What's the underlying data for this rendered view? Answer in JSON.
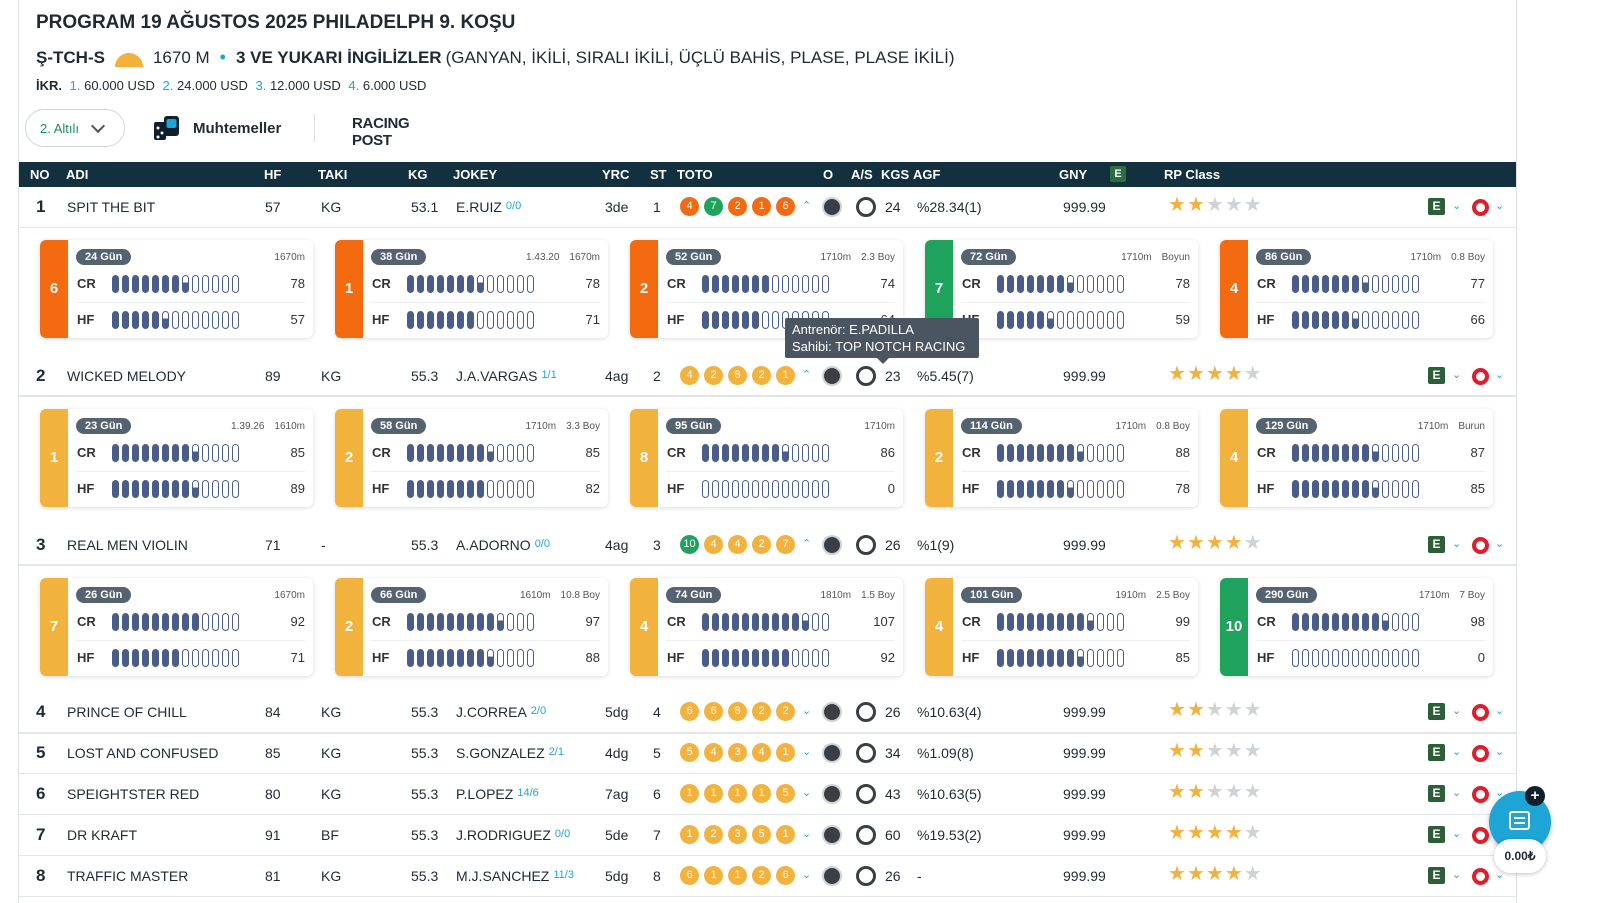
{
  "header": {
    "title": "PROGRAM 19 AĞUSTOS 2025 PHILADELPH 9. KOŞU",
    "race_code": "Ş-TCH-S",
    "distance": "1670 M",
    "bullet": "•",
    "condition": "3 VE YUKARI İNGİLİZLER",
    "bets": "(GANYAN, İKİLİ, SIRALI İKİLİ, ÜÇLÜ BAHİS, PLASE, PLASE İKİLİ)",
    "prize_label": "İKR.",
    "prizes": [
      {
        "idx": "1.",
        "amount": "60.000 USD"
      },
      {
        "idx": "2.",
        "amount": "24.000 USD"
      },
      {
        "idx": "3.",
        "amount": "12.000 USD"
      },
      {
        "idx": "4.",
        "amount": "6.000 USD"
      }
    ],
    "surface_color": "#f3b13c"
  },
  "toolbar": {
    "altili": "2. Altılı",
    "muhtemeller": "Muhtemeller",
    "racing_post": "RACING POST"
  },
  "columns": {
    "no": "NO",
    "adi": "ADI",
    "hf": "HF",
    "taki": "TAKI",
    "kg": "KG",
    "jokey": "JOKEY",
    "yrc": "YRC",
    "st": "ST",
    "toto": "TOTO",
    "o": "O",
    "as": "A/S",
    "kgs": "KGS",
    "agf": "AGF",
    "gny": "GNY",
    "e": "E",
    "rp": "RP Class"
  },
  "colors": {
    "orange": "#f2b23e",
    "deep_orange": "#f36a10",
    "green": "#1fa35c"
  },
  "rows": [
    {
      "no": "1",
      "name": "SPIT THE BIT",
      "hf": "57",
      "taki": "KG",
      "kg": "53.1",
      "jockey": "E.RUIZ",
      "jr": "0/0",
      "yrc": "3de",
      "st": "1",
      "toto": [
        {
          "v": "4",
          "c": "#f36a10"
        },
        {
          "v": "7",
          "c": "#1fa35c"
        },
        {
          "v": "2",
          "c": "#f36a10"
        },
        {
          "v": "1",
          "c": "#f36a10"
        },
        {
          "v": "6",
          "c": "#f36a10"
        }
      ],
      "arrow": "⌃",
      "kgs": "24",
      "agf": "%28.34(1)",
      "gny": "999.99",
      "stars": 2,
      "e": "E"
    },
    {
      "no": "2",
      "name": "WICKED MELODY",
      "hf": "89",
      "taki": "KG",
      "kg": "55.3",
      "jockey": "J.A.VARGAS",
      "jr": "1/1",
      "yrc": "4ag",
      "st": "2",
      "toto": [
        {
          "v": "4",
          "c": "#f2b23e"
        },
        {
          "v": "2",
          "c": "#f2b23e"
        },
        {
          "v": "8",
          "c": "#f2b23e"
        },
        {
          "v": "2",
          "c": "#f2b23e"
        },
        {
          "v": "1",
          "c": "#f2b23e"
        }
      ],
      "arrow": "⌃",
      "kgs": "23",
      "agf": "%5.45(7)",
      "gny": "999.99",
      "stars": 4,
      "e": "E"
    },
    {
      "no": "3",
      "name": "REAL MEN VIOLIN",
      "hf": "71",
      "taki": "-",
      "kg": "55.3",
      "jockey": "A.ADORNO",
      "jr": "0/0",
      "yrc": "4ag",
      "st": "3",
      "toto": [
        {
          "v": "10",
          "c": "#1fa35c"
        },
        {
          "v": "4",
          "c": "#f2b23e"
        },
        {
          "v": "4",
          "c": "#f2b23e"
        },
        {
          "v": "2",
          "c": "#f2b23e"
        },
        {
          "v": "7",
          "c": "#f2b23e"
        }
      ],
      "arrow": "⌃",
      "kgs": "26",
      "agf": "%1(9)",
      "gny": "999.99",
      "stars": 4,
      "e": "E"
    },
    {
      "no": "4",
      "name": "PRINCE OF CHILL",
      "hf": "84",
      "taki": "KG",
      "kg": "55.3",
      "jockey": "J.CORREA",
      "jr": "2/0",
      "yrc": "5dg",
      "st": "4",
      "toto": [
        {
          "v": "6",
          "c": "#f2b23e"
        },
        {
          "v": "6",
          "c": "#f2b23e"
        },
        {
          "v": "8",
          "c": "#f2b23e"
        },
        {
          "v": "2",
          "c": "#f2b23e"
        },
        {
          "v": "2",
          "c": "#f2b23e"
        }
      ],
      "arrow": "⌄",
      "kgs": "26",
      "agf": "%10.63(4)",
      "gny": "999.99",
      "stars": 2,
      "e": "E"
    },
    {
      "no": "5",
      "name": "LOST AND CONFUSED",
      "hf": "85",
      "taki": "KG",
      "kg": "55.3",
      "jockey": "S.GONZALEZ",
      "jr": "2/1",
      "yrc": "4dg",
      "st": "5",
      "toto": [
        {
          "v": "5",
          "c": "#f2b23e"
        },
        {
          "v": "4",
          "c": "#f2b23e"
        },
        {
          "v": "3",
          "c": "#f2b23e"
        },
        {
          "v": "4",
          "c": "#f2b23e"
        },
        {
          "v": "1",
          "c": "#f2b23e"
        }
      ],
      "arrow": "⌄",
      "kgs": "34",
      "agf": "%1.09(8)",
      "gny": "999.99",
      "stars": 2,
      "e": "E"
    },
    {
      "no": "6",
      "name": "SPEIGHTSTER RED",
      "hf": "80",
      "taki": "KG",
      "kg": "55.3",
      "jockey": "P.LOPEZ",
      "jr": "14/6",
      "yrc": "7ag",
      "st": "6",
      "toto": [
        {
          "v": "1",
          "c": "#f2b23e"
        },
        {
          "v": "1",
          "c": "#f2b23e"
        },
        {
          "v": "1",
          "c": "#f2b23e"
        },
        {
          "v": "1",
          "c": "#f2b23e"
        },
        {
          "v": "5",
          "c": "#f2b23e"
        }
      ],
      "arrow": "⌄",
      "kgs": "43",
      "agf": "%10.63(5)",
      "gny": "999.99",
      "stars": 2,
      "e": "E"
    },
    {
      "no": "7",
      "name": "DR KRAFT",
      "hf": "91",
      "taki": "BF",
      "kg": "55.3",
      "jockey": "J.RODRIGUEZ",
      "jr": "0/0",
      "yrc": "5de",
      "st": "7",
      "toto": [
        {
          "v": "1",
          "c": "#f2b23e"
        },
        {
          "v": "2",
          "c": "#f2b23e"
        },
        {
          "v": "3",
          "c": "#f2b23e"
        },
        {
          "v": "5",
          "c": "#f2b23e"
        },
        {
          "v": "1",
          "c": "#f2b23e"
        }
      ],
      "arrow": "⌄",
      "kgs": "60",
      "agf": "%19.53(2)",
      "gny": "999.99",
      "stars": 4,
      "e": "E"
    },
    {
      "no": "8",
      "name": "TRAFFIC MASTER",
      "hf": "81",
      "taki": "KG",
      "kg": "55.3",
      "jockey": "M.J.SANCHEZ",
      "jr": "11/3",
      "yrc": "5dg",
      "st": "8",
      "toto": [
        {
          "v": "6",
          "c": "#f2b23e"
        },
        {
          "v": "1",
          "c": "#f2b23e"
        },
        {
          "v": "1",
          "c": "#f2b23e"
        },
        {
          "v": "2",
          "c": "#f2b23e"
        },
        {
          "v": "6",
          "c": "#f2b23e"
        }
      ],
      "arrow": "⌄",
      "kgs": "26",
      "agf": "-",
      "gny": "999.99",
      "stars": 4,
      "e": "E"
    }
  ],
  "panels": [
    [
      {
        "pos": "6",
        "color": "#f36a10",
        "gun": "24 Gün",
        "meta": [
          "1670m"
        ],
        "cr": "78",
        "crf": 7.5,
        "hf": "57",
        "hff": 5.5
      },
      {
        "pos": "1",
        "color": "#f36a10",
        "gun": "38 Gün",
        "meta": [
          "1.43.20",
          "1670m"
        ],
        "cr": "78",
        "crf": 7.5,
        "hf": "71",
        "hff": 7
      },
      {
        "pos": "2",
        "color": "#f36a10",
        "gun": "52 Gün",
        "meta": [
          "1710m",
          "2.3 Boy"
        ],
        "cr": "74",
        "crf": 7,
        "hf": "64",
        "hff": 6
      },
      {
        "pos": "7",
        "color": "#1fa35c",
        "gun": "72 Gün",
        "meta": [
          "1710m",
          "Boyun"
        ],
        "cr": "78",
        "crf": 7.5,
        "hf": "59",
        "hff": 5.5
      },
      {
        "pos": "4",
        "color": "#f36a10",
        "gun": "86 Gün",
        "meta": [
          "1710m",
          "0.8 Boy"
        ],
        "cr": "77",
        "crf": 7.5,
        "hf": "66",
        "hff": 6.5
      }
    ],
    [
      {
        "pos": "1",
        "color": "#f2b23e",
        "gun": "23 Gün",
        "meta": [
          "1.39.26",
          "1610m"
        ],
        "cr": "85",
        "crf": 8.5,
        "hf": "89",
        "hff": 8.5
      },
      {
        "pos": "2",
        "color": "#f2b23e",
        "gun": "58 Gün",
        "meta": [
          "1710m",
          "3.3 Boy"
        ],
        "cr": "85",
        "crf": 8.5,
        "hf": "82",
        "hff": 8
      },
      {
        "pos": "8",
        "color": "#f2b23e",
        "gun": "95 Gün",
        "meta": [
          "1710m"
        ],
        "cr": "86",
        "crf": 8.5,
        "hf": "0",
        "hff": 0
      },
      {
        "pos": "2",
        "color": "#f2b23e",
        "gun": "114 Gün",
        "meta": [
          "1710m",
          "0.8 Boy"
        ],
        "cr": "88",
        "crf": 8.5,
        "hf": "78",
        "hff": 7.5
      },
      {
        "pos": "4",
        "color": "#f2b23e",
        "gun": "129 Gün",
        "meta": [
          "1710m",
          "Burun"
        ],
        "cr": "87",
        "crf": 8.5,
        "hf": "85",
        "hff": 8.5
      }
    ],
    [
      {
        "pos": "7",
        "color": "#f2b23e",
        "gun": "26 Gün",
        "meta": [
          "1670m"
        ],
        "cr": "92",
        "crf": 9,
        "hf": "71",
        "hff": 7
      },
      {
        "pos": "2",
        "color": "#f2b23e",
        "gun": "66 Gün",
        "meta": [
          "1610m",
          "10.8 Boy"
        ],
        "cr": "97",
        "crf": 9.5,
        "hf": "88",
        "hff": 8.5
      },
      {
        "pos": "4",
        "color": "#f2b23e",
        "gun": "74 Gün",
        "meta": [
          "1810m",
          "1.5 Boy"
        ],
        "cr": "107",
        "crf": 10.5,
        "hf": "92",
        "hff": 9
      },
      {
        "pos": "4",
        "color": "#f2b23e",
        "gun": "101 Gün",
        "meta": [
          "1910m",
          "2.5 Boy"
        ],
        "cr": "99",
        "crf": 9.5,
        "hf": "85",
        "hff": 8.5
      },
      {
        "pos": "10",
        "color": "#1fa35c",
        "gun": "290 Gün",
        "meta": [
          "1710m",
          "7 Boy"
        ],
        "cr": "98",
        "crf": 9.5,
        "hf": "0",
        "hff": 0
      }
    ]
  ],
  "card_labels": {
    "cr": "CR",
    "hf": "HF"
  },
  "tooltip": {
    "line1": "Antrenör: E.PADILLA",
    "line2": "Sahibi: TOP NOTCH RACING"
  },
  "fab": {
    "plus": "+",
    "balance": "0.00₺",
    "icon": "chat-icon"
  }
}
